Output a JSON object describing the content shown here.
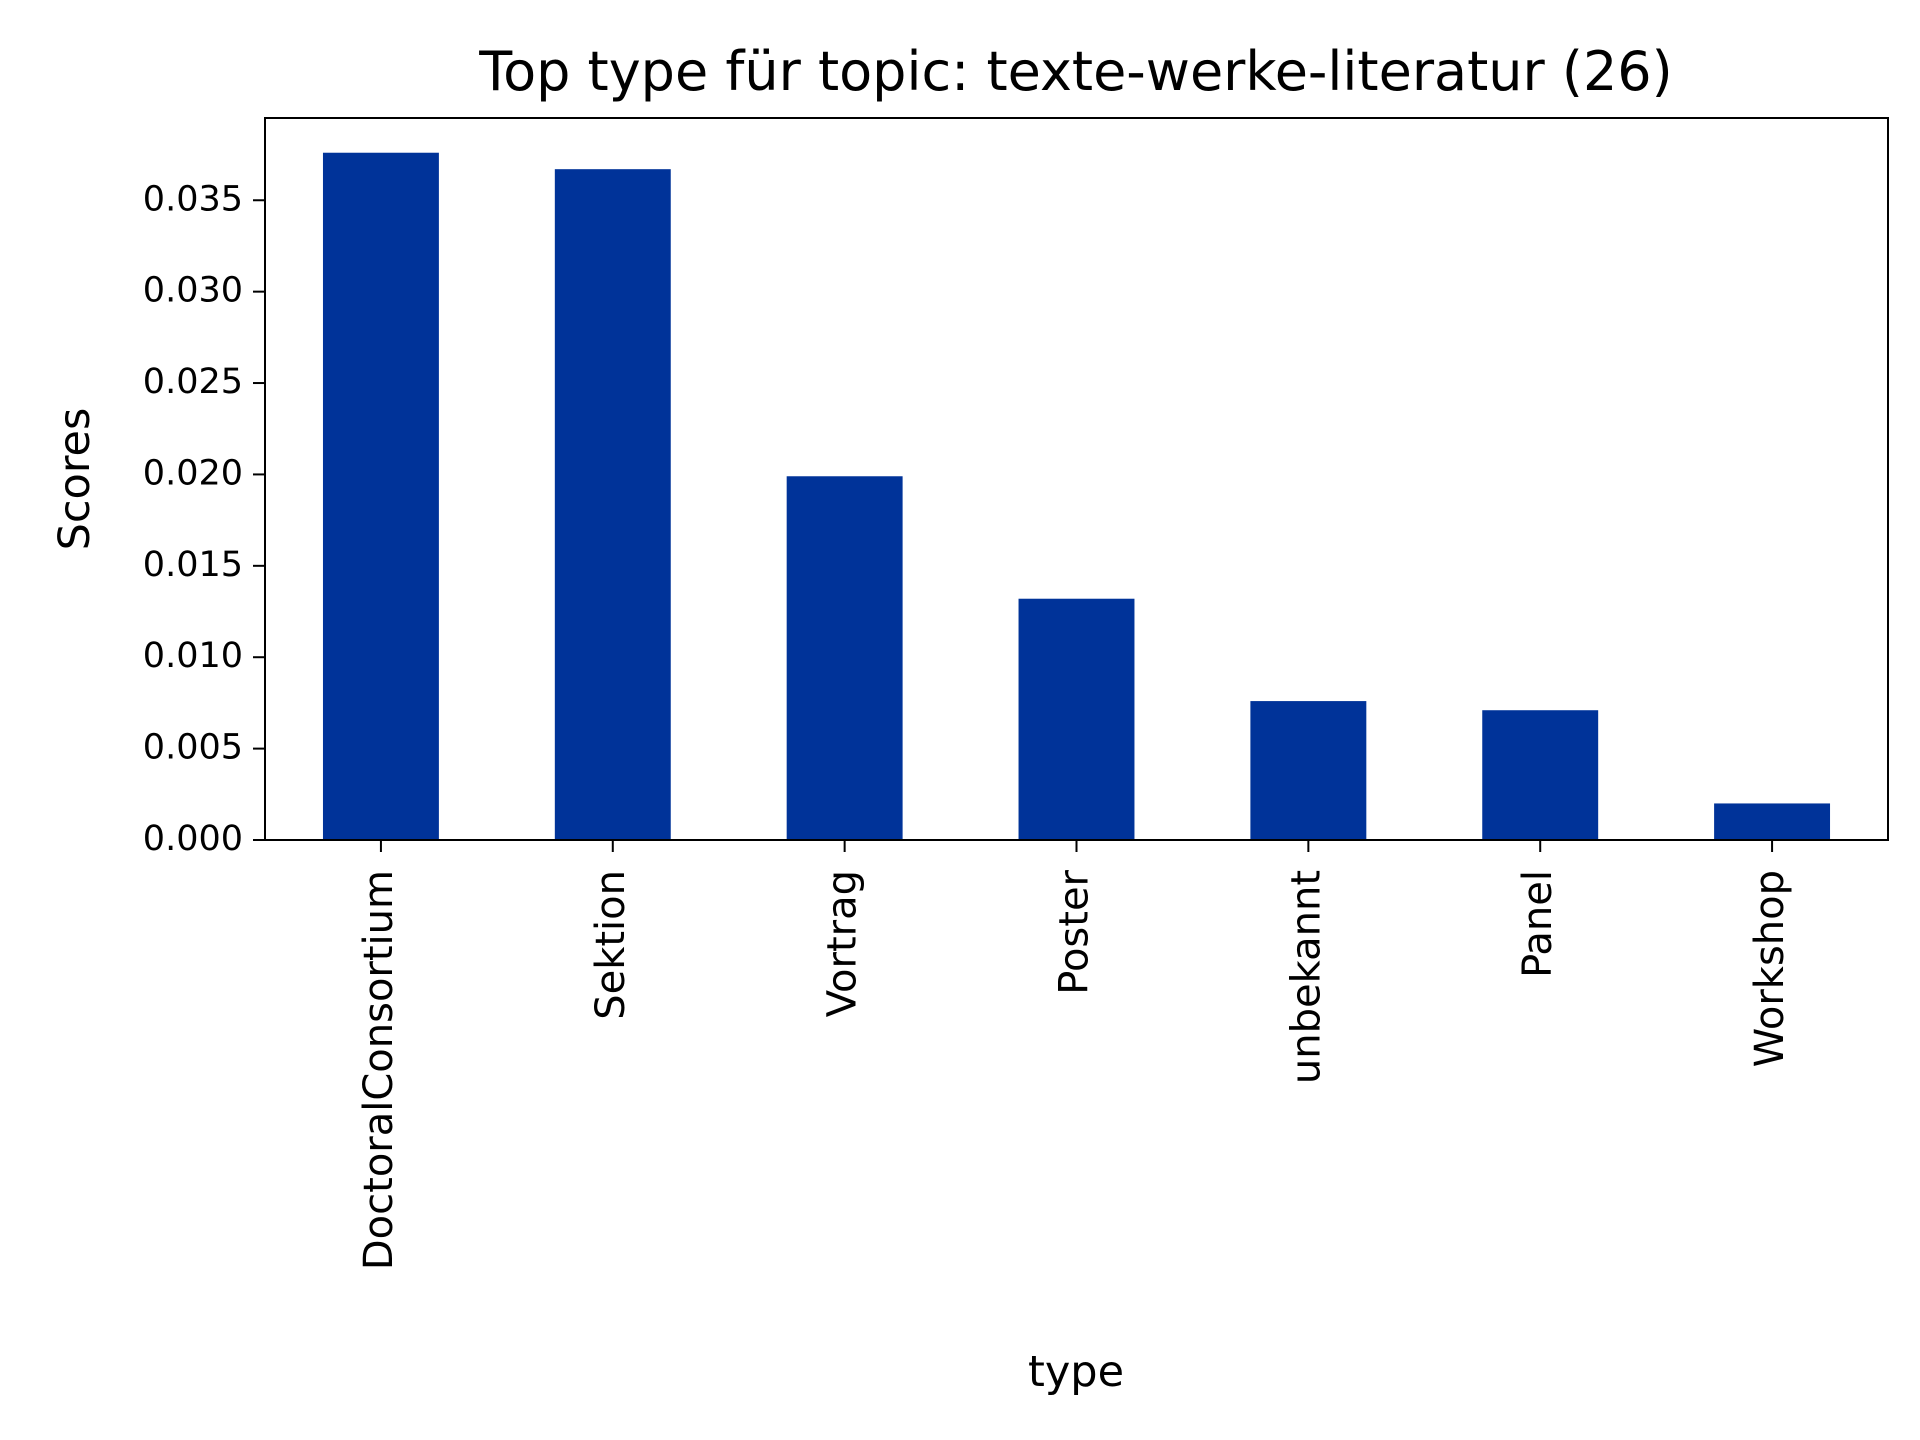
{
  "chart_data": {
    "type": "bar",
    "title": "Top type für topic: texte-werke-literatur (26)",
    "xlabel": "type",
    "ylabel": "Scores",
    "categories": [
      "DoctoralConsortium",
      "Sektion",
      "Vortrag",
      "Poster",
      "unbekannt",
      "Panel",
      "Workshop"
    ],
    "values": [
      0.0376,
      0.0367,
      0.0199,
      0.0132,
      0.0076,
      0.0071,
      0.002
    ],
    "ylim": [
      0,
      0.0395
    ],
    "yticks": [
      0.0,
      0.005,
      0.01,
      0.015,
      0.02,
      0.025,
      0.03,
      0.035
    ],
    "ytick_labels": [
      "0.000",
      "0.005",
      "0.010",
      "0.015",
      "0.020",
      "0.025",
      "0.030",
      "0.035"
    ],
    "bar_color": "#003399",
    "grid": false,
    "legend": "none"
  }
}
